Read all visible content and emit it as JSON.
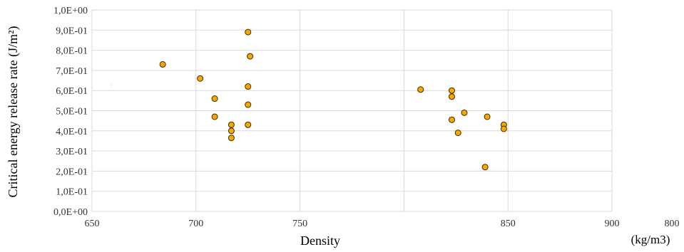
{
  "chart_data": {
    "type": "scatter",
    "title": "",
    "xlabel": "Density",
    "xunit": "(kg/m3)",
    "ylabel": "Critical energy release rate (J/m²)",
    "xlim": [
      650,
      900
    ],
    "ylim": [
      0,
      1
    ],
    "x_tick_values": [
      650,
      700,
      750,
      850,
      900
    ],
    "x_tick_labels": [
      "650",
      "700",
      "750",
      "850",
      "900"
    ],
    "x_extra_label": "800",
    "y_tick_values": [
      0,
      0.1,
      0.2,
      0.3,
      0.4,
      0.5,
      0.6,
      0.7,
      0.8,
      0.9,
      1.0
    ],
    "y_tick_labels": [
      "0,0E+00",
      "1,0E-01",
      "2,0E-01",
      "3,0E-01",
      "4,0E-01",
      "5,0E-01",
      "6,0E-01",
      "7,0E-01",
      "8,0E-01",
      "9,0E-01",
      "1,0E+00"
    ],
    "x_gridlines": [
      650,
      700,
      750,
      800,
      850,
      900
    ],
    "grid": true,
    "legend": "none",
    "marker_color": "#f5a800",
    "series": [
      {
        "points": [
          {
            "x": 684,
            "y": 0.73
          },
          {
            "x": 702,
            "y": 0.66
          },
          {
            "x": 709,
            "y": 0.56
          },
          {
            "x": 709,
            "y": 0.47
          },
          {
            "x": 717,
            "y": 0.43
          },
          {
            "x": 717,
            "y": 0.4
          },
          {
            "x": 717,
            "y": 0.365
          },
          {
            "x": 725,
            "y": 0.89
          },
          {
            "x": 726,
            "y": 0.77
          },
          {
            "x": 725,
            "y": 0.62
          },
          {
            "x": 725,
            "y": 0.53
          },
          {
            "x": 725,
            "y": 0.43
          },
          {
            "x": 808,
            "y": 0.605
          },
          {
            "x": 823,
            "y": 0.6
          },
          {
            "x": 823,
            "y": 0.57
          },
          {
            "x": 823,
            "y": 0.455
          },
          {
            "x": 826,
            "y": 0.39
          },
          {
            "x": 829,
            "y": 0.49
          },
          {
            "x": 839,
            "y": 0.22
          },
          {
            "x": 840,
            "y": 0.47
          },
          {
            "x": 848,
            "y": 0.43
          },
          {
            "x": 848,
            "y": 0.41
          }
        ]
      }
    ]
  }
}
